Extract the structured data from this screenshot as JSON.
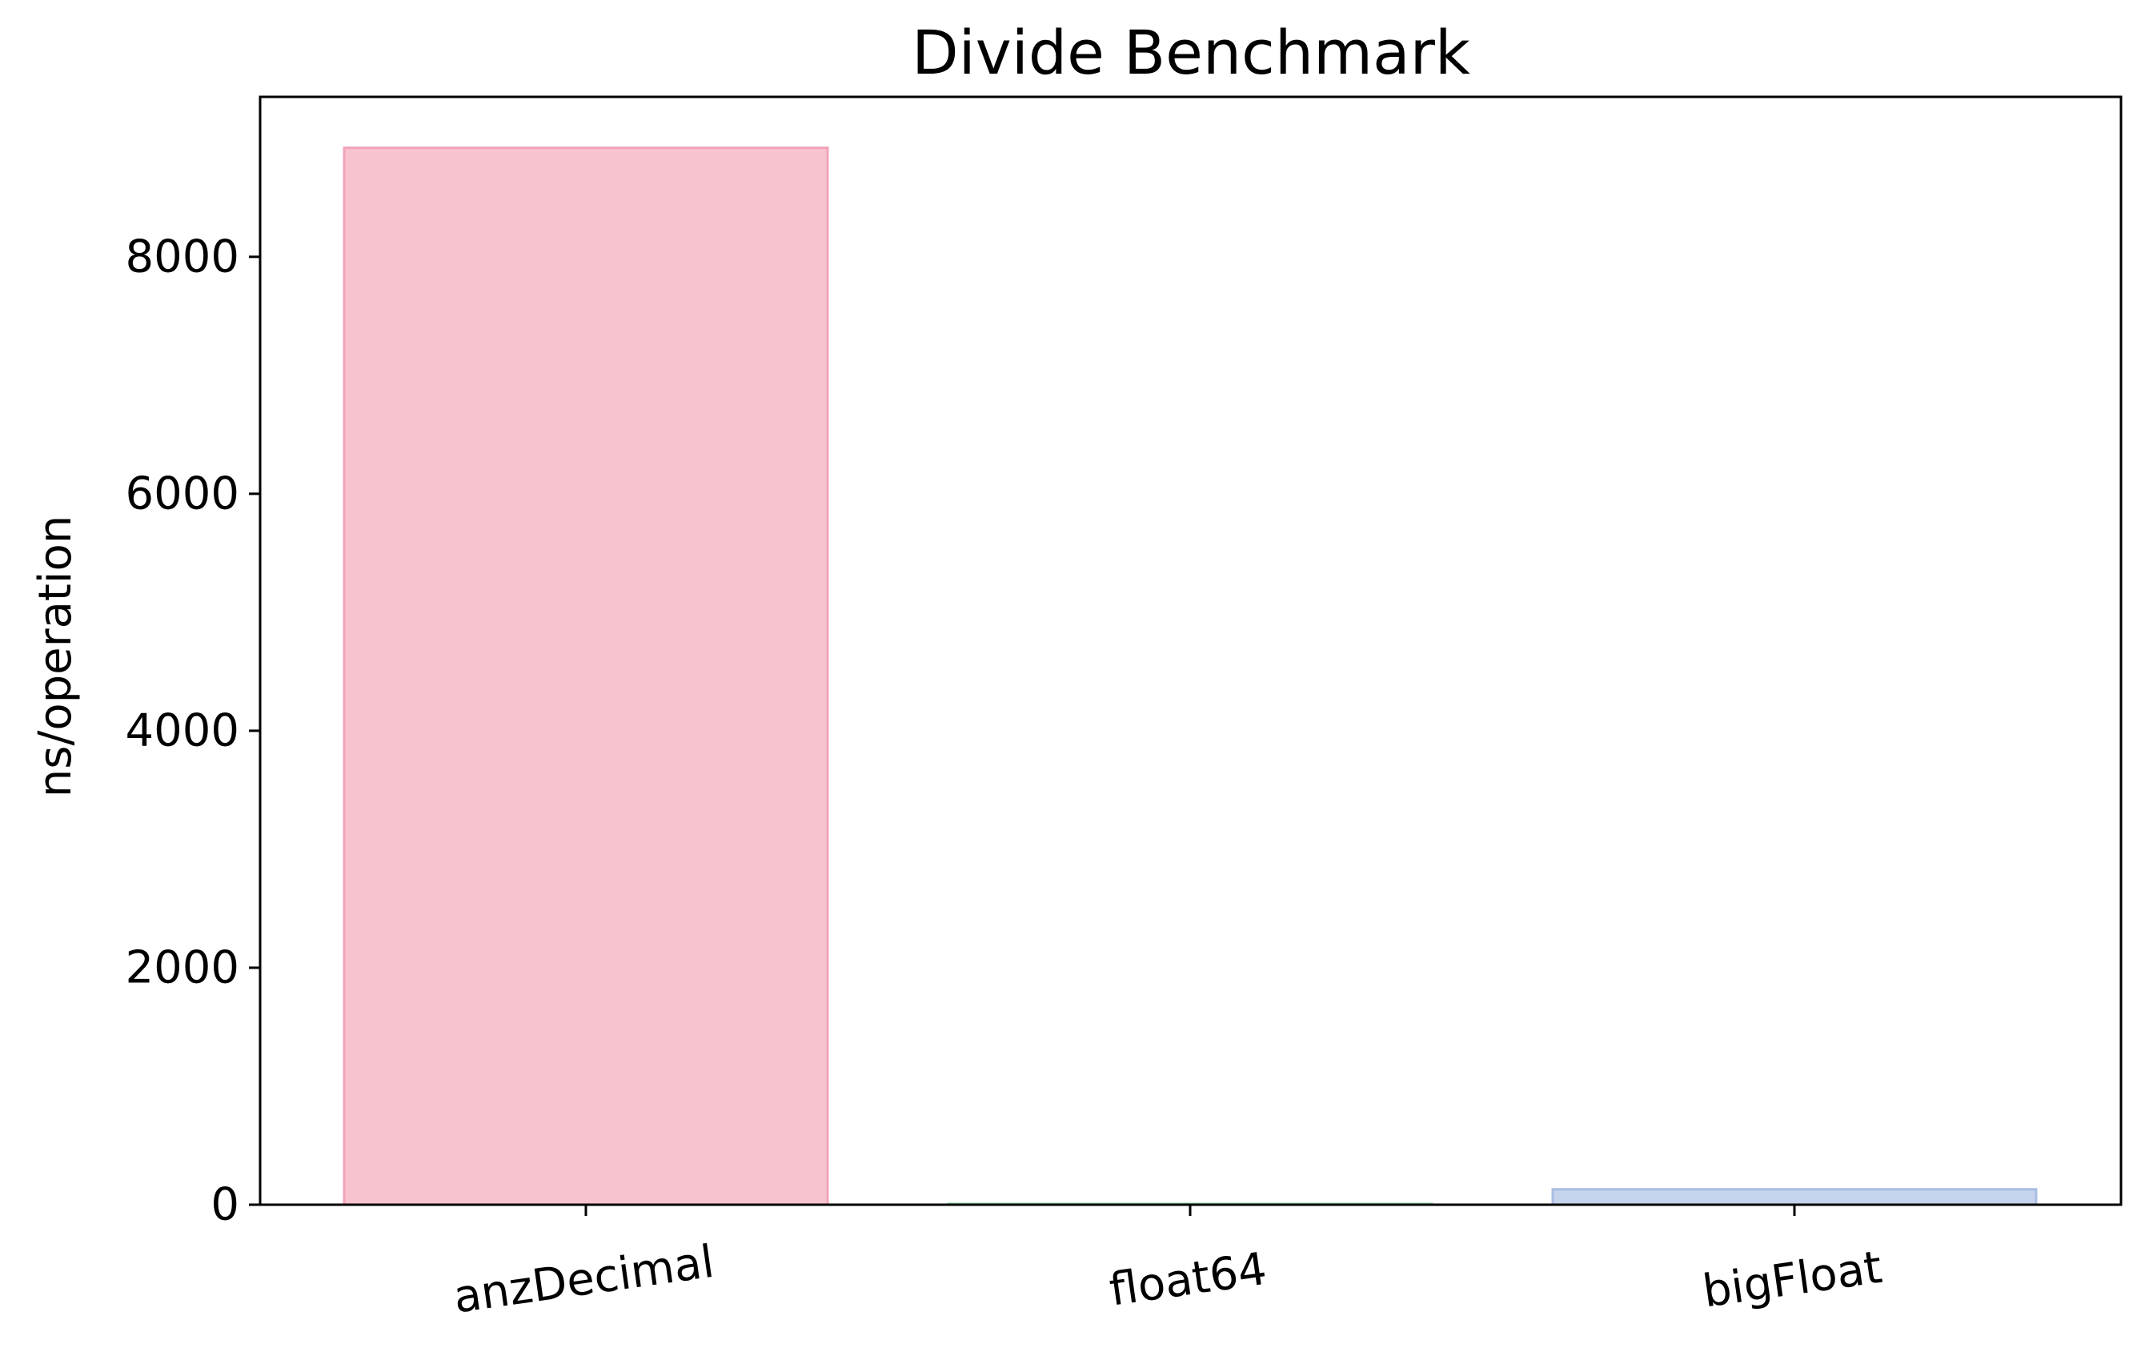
{
  "chart_data": {
    "type": "bar",
    "title": "Divide Benchmark",
    "xlabel": "",
    "ylabel": "ns/operation",
    "categories": [
      "anzDecimal",
      "float64",
      "bigFloat"
    ],
    "values": [
      8920,
      8,
      130
    ],
    "ylim": [
      0,
      9350
    ],
    "yticks": [
      0,
      2000,
      4000,
      6000,
      8000
    ],
    "ytick_labels": [
      "0",
      "2000",
      "4000",
      "6000",
      "8000"
    ],
    "grid": false,
    "colors": {
      "fills": [
        "#f7c3cf",
        "#c7ecd2",
        "#c6d3ec"
      ],
      "edges": [
        "#f0a3b9",
        "#9fdcb0",
        "#a9bde3"
      ]
    }
  }
}
